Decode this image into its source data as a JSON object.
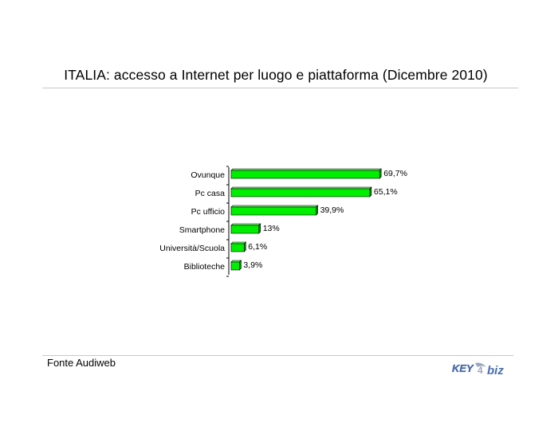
{
  "title": "ITALIA: accesso a Internet per luogo e piattaforma (Dicembre 2010)",
  "source": "Fonte Audiweb",
  "logo": {
    "text_left": "KEY",
    "text_right": "biz",
    "colors": [
      "#4a6fb0",
      "#9aa6c0"
    ]
  },
  "colors": {
    "bar": "#00ee00",
    "bar_side": "#009900",
    "bar_top": "#66ff66",
    "rule": "#c8c8c8"
  },
  "chart_data": {
    "type": "bar",
    "orientation": "horizontal",
    "title": "",
    "xlabel": "",
    "ylabel": "",
    "xlim": [
      0,
      70
    ],
    "grid": false,
    "legend": "none",
    "categories": [
      "Ovunque",
      "Pc casa",
      "Pc ufficio",
      "Smartphone",
      "Università/Scuola",
      "Biblioteche"
    ],
    "values": [
      69.7,
      65.1,
      39.9,
      13,
      6.1,
      3.9
    ],
    "value_labels": [
      "69,7%",
      "65,1%",
      "39,9%",
      "13%",
      "6,1%",
      "3,9%"
    ]
  }
}
